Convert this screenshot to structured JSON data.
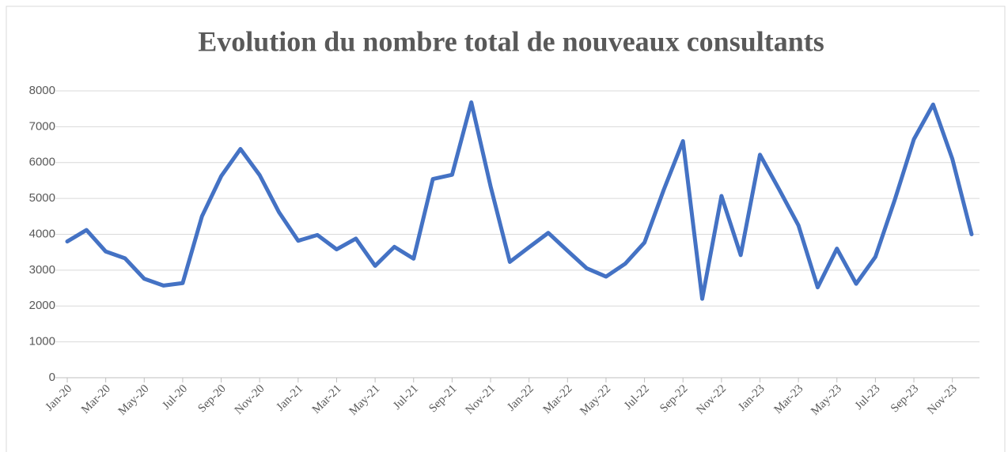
{
  "chart_data": {
    "type": "line",
    "title": "Evolution du nombre total de nouveaux consultants",
    "categories": [
      "Jan-20",
      null,
      "Mar-20",
      null,
      "May-20",
      null,
      "Jul-20",
      null,
      "Sep-20",
      null,
      "Nov-20",
      null,
      "Jan-21",
      null,
      "Mar-21",
      null,
      "May-21",
      null,
      "Jul-21",
      null,
      "Sep-21",
      null,
      "Nov-21",
      null,
      "Jan-22",
      null,
      "Mar-22",
      null,
      "May-22",
      null,
      "Jul-22",
      null,
      "Sep-22",
      null,
      "Nov-22",
      null,
      "Jan-23",
      null,
      "Mar-23",
      null,
      "May-23",
      null,
      "Jul-23",
      null,
      "Sep-23",
      null,
      "Nov-23",
      null
    ],
    "series": [
      {
        "name": "Nouveaux consultants",
        "color": "#4472c4",
        "values": [
          3800,
          4120,
          3520,
          3330,
          2760,
          2570,
          2640,
          4500,
          5620,
          6380,
          5650,
          4620,
          3820,
          3980,
          3580,
          3880,
          3120,
          3650,
          3320,
          5540,
          5660,
          7680,
          5340,
          3230,
          3640,
          4040,
          3540,
          3050,
          2820,
          3180,
          3770,
          5240,
          6600,
          2200,
          5070,
          3420,
          6220,
          5250,
          4250,
          2520,
          3600,
          2620,
          3370,
          4950,
          6650,
          7620,
          6100,
          4000
        ]
      }
    ],
    "ylim": [
      0,
      8000
    ],
    "yticks": [
      0,
      1000,
      2000,
      3000,
      4000,
      5000,
      6000,
      7000,
      8000
    ],
    "grid": true
  }
}
